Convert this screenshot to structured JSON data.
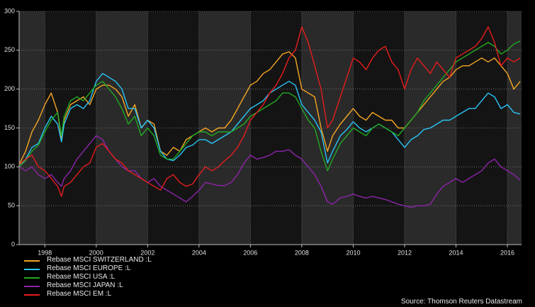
{
  "chart_data": {
    "type": "line",
    "title": "",
    "xlabel": "",
    "ylabel": "",
    "xlim": [
      1997.0,
      2016.55
    ],
    "ylim": [
      0,
      300
    ],
    "x_ticks": [
      1998,
      2000,
      2002,
      2004,
      2006,
      2008,
      2010,
      2012,
      2014,
      2016
    ],
    "y_ticks": [
      0,
      50,
      100,
      150,
      200,
      250,
      300
    ],
    "grid": true,
    "legend_position": "bottom-left",
    "series": [
      {
        "name": "Rebase MSCI SWITZERLAND :L",
        "color": "#f5a623",
        "x": [
          1997.0,
          1997.25,
          1997.5,
          1997.75,
          1998.0,
          1998.25,
          1998.5,
          1998.65,
          1998.75,
          1999.0,
          1999.25,
          1999.5,
          1999.75,
          2000.0,
          2000.25,
          2000.5,
          2000.75,
          2001.0,
          2001.25,
          2001.5,
          2001.75,
          2002.0,
          2002.25,
          2002.5,
          2002.75,
          2003.0,
          2003.25,
          2003.5,
          2003.75,
          2004.0,
          2004.25,
          2004.5,
          2004.75,
          2005.0,
          2005.25,
          2005.5,
          2005.75,
          2006.0,
          2006.25,
          2006.5,
          2006.75,
          2007.0,
          2007.25,
          2007.5,
          2007.75,
          2008.0,
          2008.25,
          2008.5,
          2008.75,
          2009.0,
          2009.2,
          2009.5,
          2009.75,
          2010.0,
          2010.25,
          2010.5,
          2010.75,
          2011.0,
          2011.25,
          2011.5,
          2011.75,
          2012.0,
          2012.25,
          2012.5,
          2012.75,
          2013.0,
          2013.25,
          2013.5,
          2013.75,
          2014.0,
          2014.25,
          2014.5,
          2014.75,
          2015.0,
          2015.25,
          2015.5,
          2015.75,
          2016.0,
          2016.25,
          2016.5
        ],
        "values": [
          103,
          120,
          145,
          160,
          180,
          195,
          170,
          135,
          160,
          180,
          185,
          190,
          180,
          200,
          205,
          205,
          200,
          190,
          165,
          180,
          150,
          160,
          155,
          120,
          115,
          125,
          120,
          135,
          140,
          145,
          150,
          145,
          150,
          150,
          160,
          175,
          190,
          205,
          210,
          220,
          225,
          235,
          245,
          248,
          240,
          200,
          195,
          190,
          150,
          120,
          140,
          155,
          165,
          175,
          165,
          160,
          170,
          165,
          160,
          160,
          150,
          150,
          160,
          170,
          180,
          190,
          200,
          210,
          215,
          225,
          230,
          230,
          235,
          240,
          235,
          240,
          230,
          220,
          200,
          210
        ]
      },
      {
        "name": "Rebase MSCI EUROPE :L",
        "color": "#29c5f6",
        "x": [
          1997.0,
          1997.25,
          1997.5,
          1997.75,
          1998.0,
          1998.25,
          1998.5,
          1998.65,
          1998.75,
          1999.0,
          1999.25,
          1999.5,
          1999.75,
          2000.0,
          2000.25,
          2000.5,
          2000.75,
          2001.0,
          2001.25,
          2001.5,
          2001.75,
          2002.0,
          2002.25,
          2002.5,
          2002.75,
          2003.0,
          2003.25,
          2003.5,
          2003.75,
          2004.0,
          2004.25,
          2004.5,
          2004.75,
          2005.0,
          2005.25,
          2005.5,
          2005.75,
          2006.0,
          2006.25,
          2006.5,
          2006.75,
          2007.0,
          2007.25,
          2007.5,
          2007.75,
          2008.0,
          2008.25,
          2008.5,
          2008.75,
          2009.0,
          2009.2,
          2009.5,
          2009.75,
          2010.0,
          2010.25,
          2010.5,
          2010.75,
          2011.0,
          2011.25,
          2011.5,
          2011.75,
          2012.0,
          2012.25,
          2012.5,
          2012.75,
          2013.0,
          2013.25,
          2013.5,
          2013.75,
          2014.0,
          2014.25,
          2014.5,
          2014.75,
          2015.0,
          2015.25,
          2015.5,
          2015.75,
          2016.0,
          2016.25,
          2016.5
        ],
        "values": [
          100,
          110,
          125,
          130,
          150,
          165,
          155,
          132,
          155,
          175,
          180,
          175,
          185,
          210,
          220,
          215,
          210,
          200,
          175,
          175,
          150,
          160,
          150,
          120,
          110,
          108,
          115,
          125,
          128,
          135,
          135,
          130,
          135,
          140,
          145,
          155,
          165,
          175,
          180,
          185,
          195,
          200,
          205,
          210,
          205,
          180,
          170,
          160,
          145,
          105,
          120,
          140,
          148,
          158,
          150,
          145,
          150,
          155,
          150,
          145,
          135,
          125,
          135,
          140,
          148,
          150,
          155,
          160,
          160,
          165,
          170,
          175,
          175,
          185,
          195,
          190,
          175,
          180,
          170,
          168
        ]
      },
      {
        "name": "Rebase MSCI USA :L",
        "color": "#22a822",
        "x": [
          1997.0,
          1997.25,
          1997.5,
          1997.75,
          1998.0,
          1998.25,
          1998.5,
          1998.65,
          1998.75,
          1999.0,
          1999.25,
          1999.5,
          1999.75,
          2000.0,
          2000.25,
          2000.5,
          2000.75,
          2001.0,
          2001.25,
          2001.5,
          2001.75,
          2002.0,
          2002.25,
          2002.5,
          2002.75,
          2003.0,
          2003.25,
          2003.5,
          2003.75,
          2004.0,
          2004.25,
          2004.5,
          2004.75,
          2005.0,
          2005.25,
          2005.5,
          2005.75,
          2006.0,
          2006.25,
          2006.5,
          2006.75,
          2007.0,
          2007.25,
          2007.5,
          2007.75,
          2008.0,
          2008.25,
          2008.5,
          2008.75,
          2009.0,
          2009.2,
          2009.5,
          2009.75,
          2010.0,
          2010.25,
          2010.5,
          2010.75,
          2011.0,
          2011.25,
          2011.5,
          2011.75,
          2012.0,
          2012.25,
          2012.5,
          2012.75,
          2013.0,
          2013.25,
          2013.5,
          2013.75,
          2014.0,
          2014.25,
          2014.5,
          2014.75,
          2015.0,
          2015.25,
          2015.5,
          2015.75,
          2016.0,
          2016.25,
          2016.5
        ],
        "values": [
          100,
          108,
          120,
          128,
          145,
          160,
          170,
          140,
          165,
          185,
          190,
          185,
          195,
          205,
          210,
          200,
          190,
          175,
          155,
          165,
          140,
          150,
          140,
          115,
          110,
          110,
          120,
          130,
          140,
          145,
          145,
          140,
          145,
          145,
          145,
          150,
          155,
          165,
          170,
          175,
          180,
          185,
          195,
          195,
          190,
          175,
          160,
          150,
          120,
          95,
          110,
          130,
          140,
          150,
          145,
          140,
          150,
          155,
          150,
          145,
          140,
          150,
          160,
          170,
          185,
          195,
          205,
          215,
          225,
          235,
          240,
          245,
          250,
          255,
          260,
          255,
          245,
          250,
          258,
          262
        ]
      },
      {
        "name": "Rebase MSCI JAPAN :L",
        "color": "#8e24aa",
        "x": [
          1997.0,
          1997.25,
          1997.5,
          1997.75,
          1998.0,
          1998.25,
          1998.5,
          1998.65,
          1998.75,
          1999.0,
          1999.25,
          1999.5,
          1999.75,
          2000.0,
          2000.25,
          2000.5,
          2000.75,
          2001.0,
          2001.25,
          2001.5,
          2001.75,
          2002.0,
          2002.25,
          2002.5,
          2002.75,
          2003.0,
          2003.25,
          2003.5,
          2003.75,
          2004.0,
          2004.25,
          2004.5,
          2004.75,
          2005.0,
          2005.25,
          2005.5,
          2005.75,
          2006.0,
          2006.25,
          2006.5,
          2006.75,
          2007.0,
          2007.25,
          2007.5,
          2007.75,
          2008.0,
          2008.25,
          2008.5,
          2008.75,
          2009.0,
          2009.2,
          2009.5,
          2009.75,
          2010.0,
          2010.25,
          2010.5,
          2010.75,
          2011.0,
          2011.25,
          2011.5,
          2011.75,
          2012.0,
          2012.25,
          2012.5,
          2012.75,
          2013.0,
          2013.25,
          2013.5,
          2013.75,
          2014.0,
          2014.25,
          2014.5,
          2014.75,
          2015.0,
          2015.25,
          2015.5,
          2015.75,
          2016.0,
          2016.25,
          2016.5
        ],
        "values": [
          100,
          95,
          100,
          90,
          85,
          90,
          80,
          75,
          85,
          95,
          110,
          120,
          130,
          140,
          135,
          120,
          110,
          100,
          95,
          95,
          85,
          80,
          85,
          75,
          70,
          65,
          60,
          55,
          62,
          70,
          80,
          78,
          76,
          76,
          80,
          90,
          105,
          115,
          110,
          112,
          115,
          120,
          120,
          122,
          115,
          110,
          100,
          90,
          75,
          55,
          52,
          60,
          62,
          65,
          62,
          60,
          62,
          60,
          58,
          55,
          52,
          50,
          48,
          50,
          50,
          52,
          65,
          75,
          80,
          85,
          80,
          85,
          90,
          95,
          105,
          110,
          100,
          95,
          90,
          83
        ]
      },
      {
        "name": "Rebase MSCI EM :L",
        "color": "#e81c1c",
        "x": [
          1997.0,
          1997.25,
          1997.5,
          1997.75,
          1998.0,
          1998.25,
          1998.5,
          1998.65,
          1998.75,
          1999.0,
          1999.25,
          1999.5,
          1999.75,
          2000.0,
          2000.25,
          2000.5,
          2000.75,
          2001.0,
          2001.25,
          2001.5,
          2001.75,
          2002.0,
          2002.25,
          2002.5,
          2002.75,
          2003.0,
          2003.25,
          2003.5,
          2003.75,
          2004.0,
          2004.25,
          2004.5,
          2004.75,
          2005.0,
          2005.25,
          2005.5,
          2005.75,
          2006.0,
          2006.25,
          2006.5,
          2006.75,
          2007.0,
          2007.25,
          2007.5,
          2007.75,
          2008.0,
          2008.25,
          2008.5,
          2008.75,
          2009.0,
          2009.2,
          2009.5,
          2009.75,
          2010.0,
          2010.25,
          2010.5,
          2010.75,
          2011.0,
          2011.25,
          2011.5,
          2011.75,
          2012.0,
          2012.25,
          2012.5,
          2012.75,
          2013.0,
          2013.25,
          2013.5,
          2013.75,
          2014.0,
          2014.25,
          2014.5,
          2014.75,
          2015.0,
          2015.25,
          2015.5,
          2015.75,
          2016.0,
          2016.25,
          2016.5
        ],
        "values": [
          103,
          110,
          115,
          100,
          95,
          85,
          75,
          62,
          75,
          80,
          90,
          100,
          105,
          125,
          130,
          120,
          110,
          105,
          95,
          90,
          85,
          80,
          75,
          70,
          85,
          90,
          80,
          75,
          78,
          90,
          100,
          95,
          100,
          108,
          115,
          125,
          140,
          160,
          170,
          180,
          195,
          205,
          220,
          240,
          250,
          280,
          260,
          230,
          200,
          150,
          160,
          190,
          215,
          240,
          235,
          225,
          240,
          250,
          255,
          235,
          225,
          200,
          225,
          240,
          230,
          220,
          235,
          225,
          215,
          240,
          245,
          250,
          255,
          265,
          280,
          260,
          230,
          240,
          235,
          240
        ]
      }
    ]
  },
  "source": "Source: Thomson Reuters Datastream"
}
